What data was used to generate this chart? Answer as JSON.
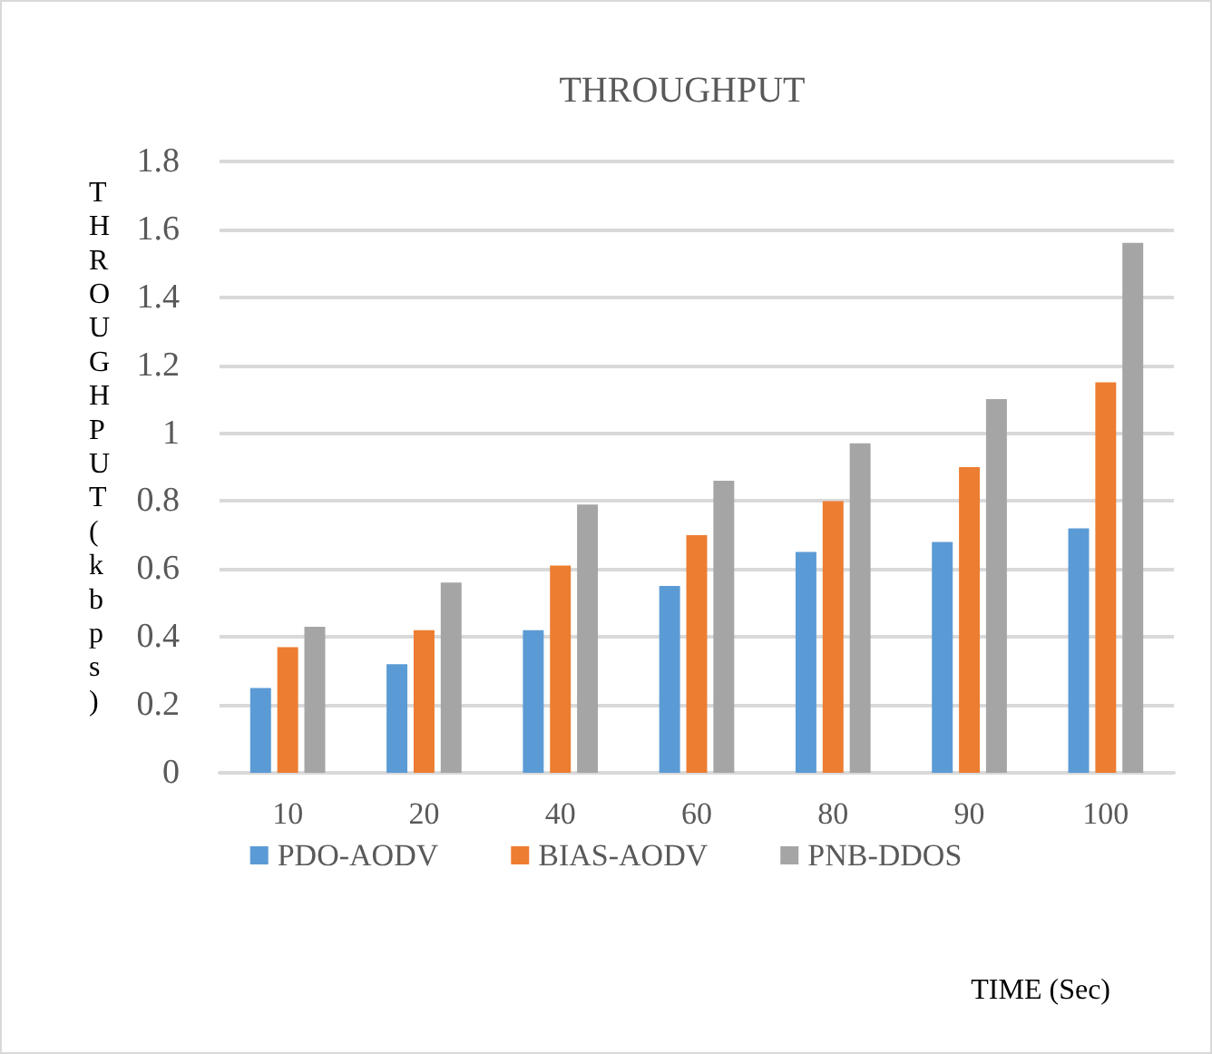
{
  "chart_data": {
    "type": "bar",
    "title": "THROUGHPUT",
    "xlabel": "TIME (Sec)",
    "ylabel": "THROUGHPUT (kbps)",
    "categories": [
      "10",
      "20",
      "40",
      "60",
      "80",
      "90",
      "100"
    ],
    "series": [
      {
        "name": "PDO-AODV",
        "color": "#5b9bd5",
        "values": [
          0.25,
          0.32,
          0.42,
          0.55,
          0.65,
          0.68,
          0.72
        ]
      },
      {
        "name": "BIAS-AODV",
        "color": "#ed7d31",
        "values": [
          0.37,
          0.42,
          0.61,
          0.7,
          0.8,
          0.9,
          1.15
        ]
      },
      {
        "name": "PNB-DDOS",
        "color": "#a5a5a5",
        "values": [
          0.43,
          0.56,
          0.79,
          0.86,
          0.97,
          1.1,
          1.56
        ]
      }
    ],
    "ylim": [
      0,
      1.8
    ],
    "yticks": [
      0,
      0.2,
      0.4,
      0.6,
      0.8,
      1,
      1.2,
      1.4,
      1.6,
      1.8
    ],
    "grid": "y",
    "legend": "bottom"
  }
}
